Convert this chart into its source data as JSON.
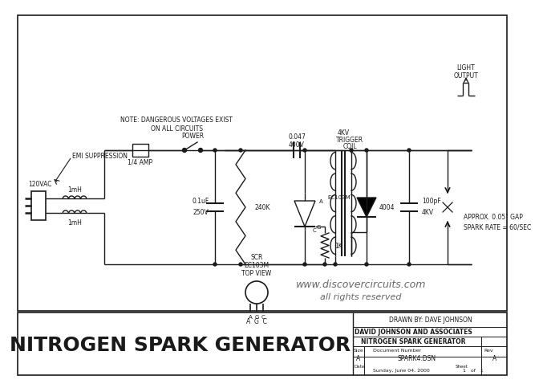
{
  "title": "NITROGEN SPARK GENERATOR",
  "subtitle_line1": "NOTE: DANGEROUS VOLTAGES EXIST",
  "subtitle_line2": "ON ALL CIRCUITS",
  "label_emi": "EMI SUPPRESSION",
  "label_120vac": "120VAC",
  "label_1mh_top": "1mH",
  "label_1mh_bot": "1mH",
  "label_power": "POWER",
  "label_fuse": "1/4 AMP",
  "label_240k": "240K",
  "label_cap1": "0.1uF",
  "label_cap1v": "250V",
  "label_1k": "1K",
  "label_cap2": "0.047",
  "label_cap2v": "400V",
  "label_4kv": "4KV",
  "label_trigger": "TRIGGER",
  "label_coil": "COIL",
  "label_100pf": "100pF",
  "label_4kv2": "4KV",
  "label_approx": "APPROX. 0.05\" GAP",
  "label_spark": "SPARK RATE = 60/SEC",
  "label_light": "LIGHT",
  "label_output": "OUTPUT",
  "label_ec103m": "EC103M",
  "label_topview": "TOP VIEW",
  "label_ec103m2": "EC103M",
  "label_scr": "SCR",
  "label_agc": "A  G  C",
  "label_4004": "4004",
  "label_website": "www.discovercircuits.com",
  "label_rights": "all rights reserved",
  "label_drawn": "DRAWN BY: DAVE JOHNSON",
  "label_company": "DAVID JOHNSON AND ASSOCIATES",
  "label_circuit": "NITROGEN SPARK GENERATOR",
  "label_size": "Size",
  "label_a": "A",
  "label_docnum": "Document Number",
  "label_spark4": "SPARK4.DSN",
  "label_rev": "Rev",
  "label_reva": "A",
  "label_date": "Date",
  "label_dateval": "Sunday, June 04, 2000",
  "label_sheet": "Sheet",
  "label_sheet_val": "1   of   1",
  "bg_color": "#ffffff",
  "line_color": "#1a1a1a",
  "text_color": "#1a1a1a"
}
